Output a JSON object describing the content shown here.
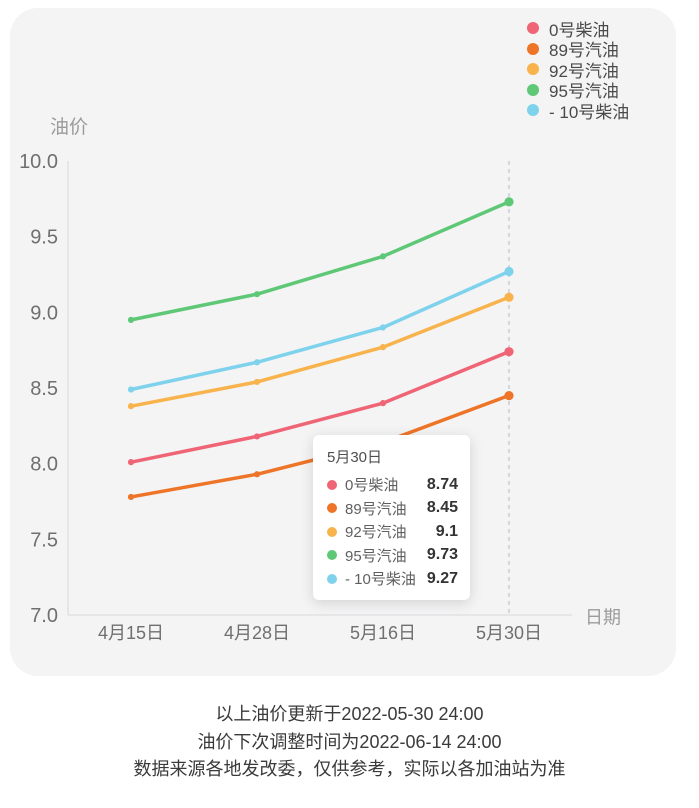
{
  "chart_data": {
    "type": "line",
    "title": "",
    "xlabel": "日期",
    "ylabel": "油价",
    "categories": [
      "4月15日",
      "4月28日",
      "5月16日",
      "5月30日"
    ],
    "series": [
      {
        "name": "0号柴油",
        "color": "#ef6576",
        "values": [
          8.01,
          8.18,
          8.4,
          8.74
        ]
      },
      {
        "name": "89号汽油",
        "color": "#ee7528",
        "values": [
          7.78,
          7.93,
          8.14,
          8.45
        ]
      },
      {
        "name": "92号汽油",
        "color": "#f8b34c",
        "values": [
          8.38,
          8.54,
          8.77,
          9.1
        ]
      },
      {
        "name": "95号汽油",
        "color": "#5ec877",
        "values": [
          8.95,
          9.12,
          9.37,
          9.73
        ]
      },
      {
        "name": "- 10号柴油",
        "color": "#7ed2ec",
        "values": [
          8.49,
          8.67,
          8.9,
          9.27
        ]
      }
    ],
    "ylim": [
      7.0,
      10.0
    ],
    "yticks": [
      7.0,
      7.5,
      8.0,
      8.5,
      9.0,
      9.5,
      10.0
    ],
    "grid": false,
    "legend_position": "top-right",
    "highlighted_category": "5月30日",
    "axis_color": "#d9d9d9",
    "pointer_line_color": "#c4c6d0",
    "tick_label_color": "#6f6f6f",
    "axis_name_color": "#9b9b9b"
  },
  "tooltip": {
    "title": "5月30日",
    "rows": [
      {
        "label": "0号柴油",
        "color": "#ef6576",
        "value": "8.74"
      },
      {
        "label": "89号汽油",
        "color": "#ee7528",
        "value": "8.45"
      },
      {
        "label": "92号汽油",
        "color": "#f8b34c",
        "value": "9.1"
      },
      {
        "label": "95号汽油",
        "color": "#5ec877",
        "value": "9.73"
      },
      {
        "label": "- 10号柴油",
        "color": "#7ed2ec",
        "value": "9.27"
      }
    ]
  },
  "footer": {
    "line1": "以上油价更新于2022-05-30 24:00",
    "line2": "油价下次调整时间为2022-06-14 24:00",
    "line3": "数据来源各地发改委，仅供参考，实际以各加油站为准"
  }
}
